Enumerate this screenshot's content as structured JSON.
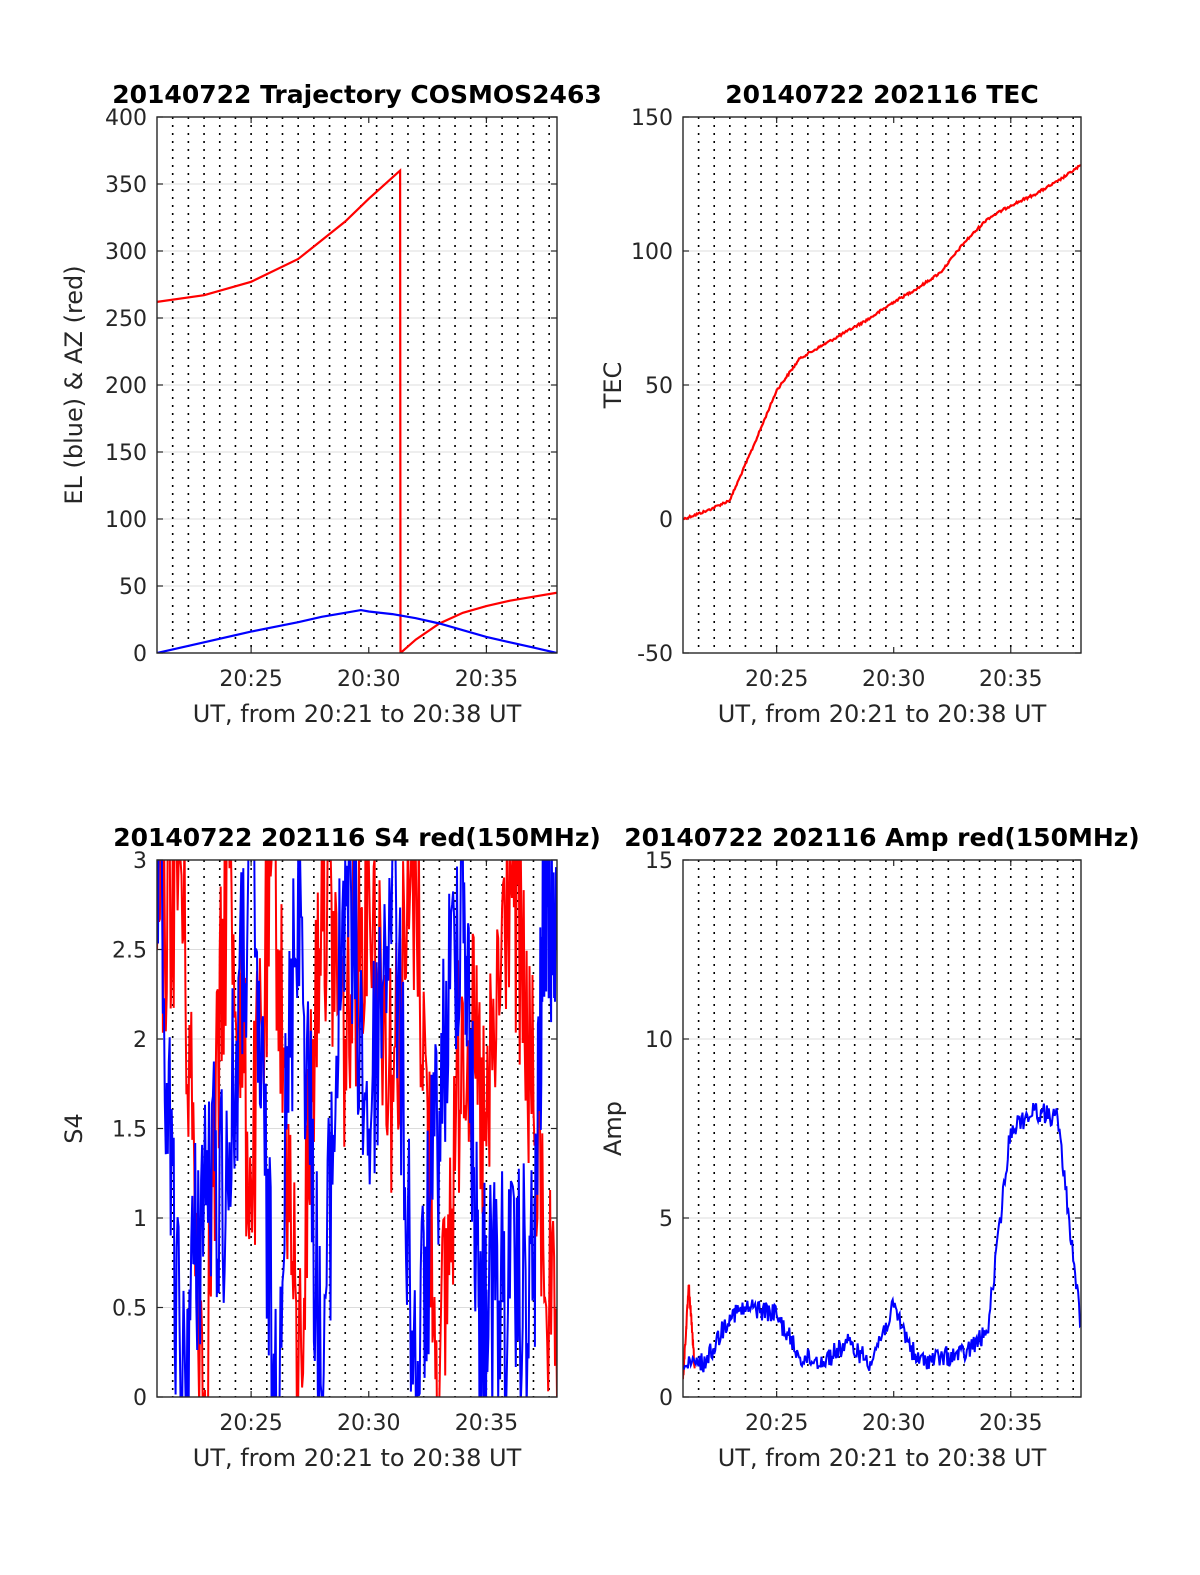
{
  "chart_data": [
    {
      "type": "line",
      "title": "20140722 Trajectory COSMOS2463",
      "xlabel": "UT, from 20:21 to 20:38 UT",
      "ylabel": "EL (blue) & AZ (red)",
      "xlim": [
        "20:21",
        "20:38"
      ],
      "ylim": [
        0,
        400
      ],
      "xticks": [
        "20:25",
        "20:30",
        "20:35"
      ],
      "yticks": [
        "0",
        "50",
        "100",
        "150",
        "200",
        "250",
        "300",
        "350",
        "400"
      ],
      "grid": true,
      "series": [
        {
          "color": "#ff0000",
          "points": [
            [
              "20:21",
              262
            ],
            [
              "20:23",
              267
            ],
            [
              "20:25",
              277
            ],
            [
              "20:27",
              294
            ],
            [
              "20:29",
              322
            ],
            [
              "20:30",
              339
            ],
            [
              "20:31:20",
              360
            ],
            [
              "20:31:21",
              0
            ],
            [
              "20:32",
              10
            ],
            [
              "20:33",
              22
            ],
            [
              "20:34",
              30
            ],
            [
              "20:35",
              35
            ],
            [
              "20:36",
              39
            ],
            [
              "20:37",
              42
            ],
            [
              "20:38",
              45
            ]
          ]
        },
        {
          "color": "#0000ff",
          "points": [
            [
              "20:21",
              0
            ],
            [
              "20:23",
              8
            ],
            [
              "20:25",
              16
            ],
            [
              "20:27",
              23
            ],
            [
              "20:28",
              27
            ],
            [
              "20:29",
              30
            ],
            [
              "20:29:40",
              32
            ],
            [
              "20:30",
              31
            ],
            [
              "20:31",
              29
            ],
            [
              "20:32",
              26
            ],
            [
              "20:33",
              22
            ],
            [
              "20:34",
              17
            ],
            [
              "20:35",
              12
            ],
            [
              "20:36",
              8
            ],
            [
              "20:37",
              4
            ],
            [
              "20:38",
              0
            ]
          ]
        }
      ]
    },
    {
      "type": "line",
      "title": "20140722 202116 TEC",
      "xlabel": "UT, from 20:21 to 20:38 UT",
      "ylabel": "TEC",
      "xlim": [
        "20:21",
        "20:38"
      ],
      "ylim": [
        -50,
        150
      ],
      "xticks": [
        "20:25",
        "20:30",
        "20:35"
      ],
      "yticks": [
        "-50",
        "0",
        "50",
        "100",
        "150"
      ],
      "grid": true,
      "series": [
        {
          "color": "#ff0000",
          "points": [
            [
              "20:21",
              0
            ],
            [
              "20:22",
              3
            ],
            [
              "20:23",
              7
            ],
            [
              "20:24",
              27
            ],
            [
              "20:25",
              48
            ],
            [
              "20:26",
              60
            ],
            [
              "20:27",
              65
            ],
            [
              "20:28",
              70
            ],
            [
              "20:29",
              75
            ],
            [
              "20:30",
              81
            ],
            [
              "20:31",
              86
            ],
            [
              "20:32",
              92
            ],
            [
              "20:33",
              103
            ],
            [
              "20:34",
              112
            ],
            [
              "20:35",
              117
            ],
            [
              "20:36",
              121
            ],
            [
              "20:37",
              126
            ],
            [
              "20:38",
              132
            ]
          ]
        }
      ]
    },
    {
      "type": "line",
      "title": "20140722 202116 S4 red(150MHz)",
      "xlabel": "UT, from 20:21 to 20:38 UT",
      "ylabel": "S4",
      "xlim": [
        "20:21",
        "20:38"
      ],
      "ylim": [
        0,
        3
      ],
      "xticks": [
        "20:25",
        "20:30",
        "20:35"
      ],
      "yticks": [
        "0",
        "0.5",
        "1",
        "1.5",
        "2",
        "2.5",
        "3"
      ],
      "grid": true,
      "series": [
        {
          "color": "#ff0000",
          "points": [
            [
              "20:21",
              2.5
            ],
            [
              "20:22",
              3
            ],
            [
              "20:23",
              0
            ],
            [
              "20:24",
              3
            ],
            [
              "20:25",
              1.2
            ],
            [
              "20:26",
              3
            ],
            [
              "20:27",
              0
            ],
            [
              "20:28",
              3
            ],
            [
              "20:29",
              2
            ],
            [
              "20:30",
              3
            ],
            [
              "20:31",
              1.8
            ],
            [
              "20:32",
              3
            ],
            [
              "20:33",
              0
            ],
            [
              "20:34",
              2.2
            ],
            [
              "20:35",
              1.4
            ],
            [
              "20:36",
              3
            ],
            [
              "20:37",
              1.6
            ],
            [
              "20:38",
              0
            ]
          ]
        },
        {
          "color": "#0000ff",
          "points": [
            [
              "20:21",
              3
            ],
            [
              "20:22",
              0
            ],
            [
              "20:23",
              1.2
            ],
            [
              "20:24",
              1.2
            ],
            [
              "20:25",
              3
            ],
            [
              "20:26",
              0
            ],
            [
              "20:27",
              3
            ],
            [
              "20:28",
              0
            ],
            [
              "20:29",
              3
            ],
            [
              "20:30",
              1.5
            ],
            [
              "20:31",
              3
            ],
            [
              "20:32",
              0
            ],
            [
              "20:33",
              1.6
            ],
            [
              "20:34",
              3
            ],
            [
              "20:34:40",
              0.5
            ],
            [
              "20:35",
              0.6
            ],
            [
              "20:36",
              0.55
            ],
            [
              "20:37",
              0.6
            ],
            [
              "20:37:30",
              3
            ],
            [
              "20:38",
              2.5
            ]
          ]
        }
      ]
    },
    {
      "type": "line",
      "title": "20140722 202116 Amp red(150MHz)",
      "xlabel": "UT, from 20:21 to 20:38 UT",
      "ylabel": "Amp",
      "xlim": [
        "20:21",
        "20:38"
      ],
      "ylim": [
        0,
        15
      ],
      "xticks": [
        "20:25",
        "20:30",
        "20:35"
      ],
      "yticks": [
        "0",
        "5",
        "10",
        "15"
      ],
      "grid": true,
      "series": [
        {
          "color": "#ff0000",
          "points": [
            [
              "20:21",
              0.5
            ],
            [
              "20:21:15",
              3.1
            ],
            [
              "20:21:30",
              0.8
            ]
          ]
        },
        {
          "color": "#0000ff",
          "points": [
            [
              "20:21",
              0.8
            ],
            [
              "20:22",
              1.0
            ],
            [
              "20:23",
              2.3
            ],
            [
              "20:24",
              2.5
            ],
            [
              "20:25",
              2.3
            ],
            [
              "20:26",
              1.1
            ],
            [
              "20:27",
              1.0
            ],
            [
              "20:28",
              1.5
            ],
            [
              "20:29",
              1.0
            ],
            [
              "20:30",
              2.5
            ],
            [
              "20:31",
              1.0
            ],
            [
              "20:32",
              1.1
            ],
            [
              "20:33",
              1.2
            ],
            [
              "20:34",
              1.8
            ],
            [
              "20:35",
              7.5
            ],
            [
              "20:36",
              8.0
            ],
            [
              "20:37",
              7.8
            ],
            [
              "20:38",
              2.0
            ]
          ]
        }
      ]
    }
  ]
}
